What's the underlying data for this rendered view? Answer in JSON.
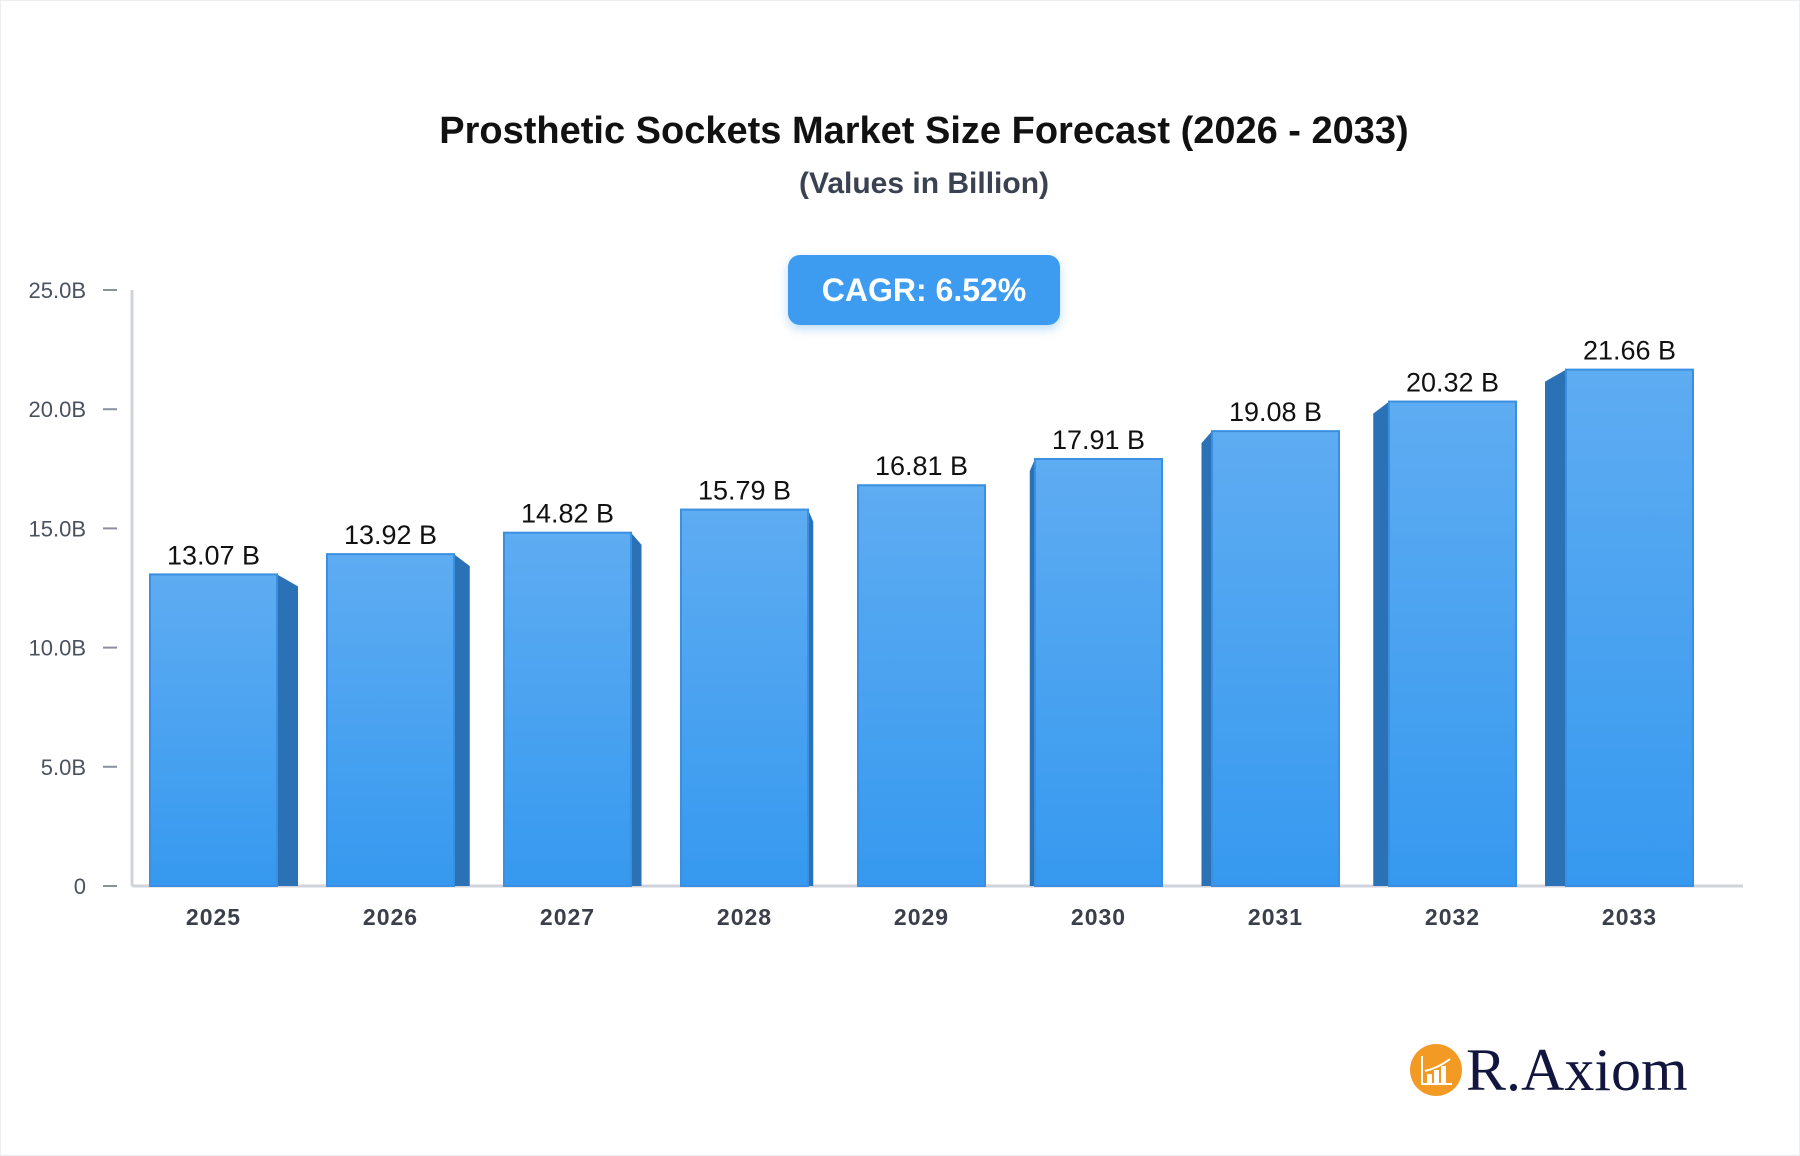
{
  "chart_data": {
    "type": "bar",
    "title": "Prosthetic Sockets Market Size Forecast (2026 - 2033)",
    "subtitle": "(Values in Billion)",
    "categories": [
      "2025",
      "2026",
      "2027",
      "2028",
      "2029",
      "2030",
      "2031",
      "2032",
      "2033"
    ],
    "values": [
      13.07,
      13.92,
      14.82,
      15.79,
      16.81,
      17.91,
      19.08,
      20.32,
      21.66
    ],
    "data_labels": [
      "13.07 B",
      "13.92 B",
      "14.82 B",
      "15.79 B",
      "16.81 B",
      "17.91 B",
      "19.08 B",
      "20.32 B",
      "21.66 B"
    ],
    "yticks": [
      0,
      5,
      10,
      15,
      20,
      25
    ],
    "ytick_labels": [
      "0",
      "5.0B",
      "10.0B",
      "15.0B",
      "20.0B",
      "25.0B"
    ],
    "ylim": [
      0,
      25
    ],
    "xlabel": "",
    "ylabel": "",
    "grid": false,
    "annotation": "CAGR: 6.52%",
    "colors": {
      "bar_top": "#5eacf2",
      "bar_bottom": "#3699ef",
      "bar_side": "#2a72b5",
      "axis": "#d0d3db"
    }
  },
  "brand": {
    "name": "R.Axiom",
    "accent": "#f39a25"
  }
}
